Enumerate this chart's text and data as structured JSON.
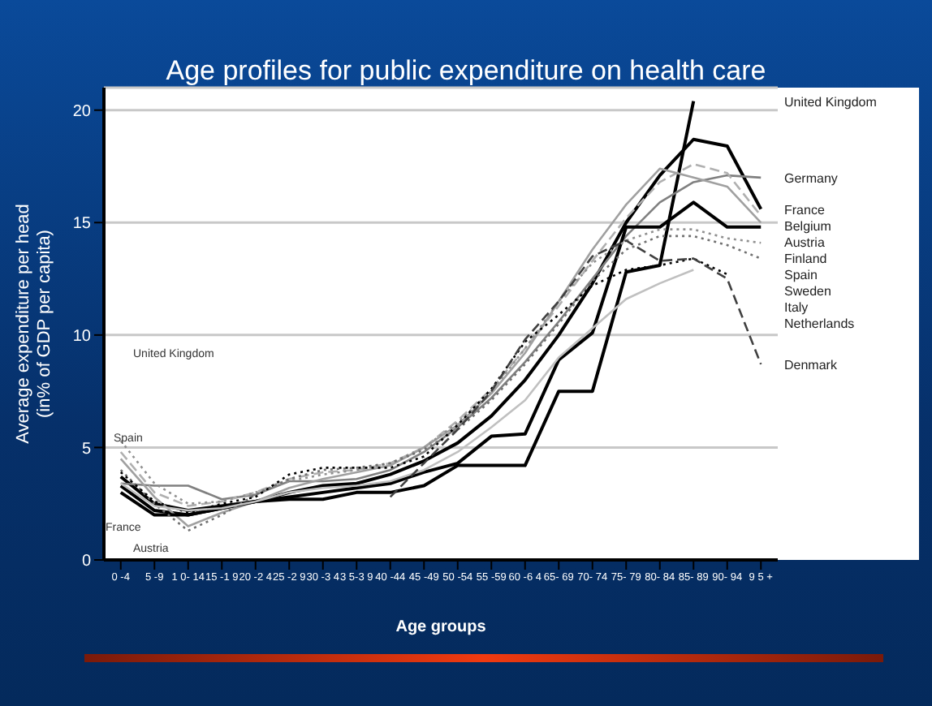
{
  "chart_data": {
    "type": "line",
    "title": "Age profiles for public expenditure on health care",
    "xlabel": "Age groups",
    "ylabel": "Average expenditure per head\n(in% of GDP per capita)",
    "categories": [
      "0 -4",
      "5 -9",
      "1 0- 14",
      "15 -1 9",
      "20 -2 4",
      "25 -2 9",
      "30 -3 4",
      "3 5-3 9",
      "40 -44",
      "45 -49",
      "50 -54",
      "55 -59",
      "60 -6 4",
      "65- 69",
      "70- 74",
      "75- 79",
      "80- 84",
      "85- 89",
      "90- 94",
      "9 5 +"
    ],
    "ylim": [
      0,
      21
    ],
    "yticks": [
      0,
      5,
      10,
      15,
      20
    ],
    "grid": "y",
    "legend": false,
    "series": [
      {
        "name": "United Kingdom",
        "color": "#000000",
        "line_style": "solid",
        "values": [
          3.3,
          2.2,
          2.0,
          2.3,
          2.6,
          2.7,
          2.7,
          3.0,
          3.0,
          3.3,
          4.2,
          4.2,
          4.2,
          7.5,
          7.5,
          12.8,
          13.1,
          20.4,
          null,
          null
        ]
      },
      {
        "name": "France",
        "color": "#000000",
        "line_style": "solid",
        "values": [
          3.7,
          2.5,
          2.2,
          2.4,
          2.6,
          3.0,
          3.3,
          3.4,
          3.8,
          4.4,
          5.2,
          6.4,
          8.0,
          10.0,
          12.3,
          15.0,
          17.1,
          18.7,
          18.4,
          15.6
        ]
      },
      {
        "name": "Germany",
        "color": "#808080",
        "line_style": "solid",
        "values": [
          3.4,
          3.3,
          3.3,
          2.7,
          2.9,
          3.5,
          3.5,
          3.6,
          4.0,
          4.8,
          5.9,
          7.2,
          8.8,
          10.6,
          12.5,
          14.4,
          15.9,
          16.8,
          17.1,
          17.0
        ]
      },
      {
        "name": "Belgium",
        "color": "#b0b0b0",
        "line_style": "dashed",
        "values": [
          4.8,
          3.0,
          2.4,
          2.6,
          3.0,
          3.6,
          3.9,
          4.0,
          4.3,
          5.0,
          6.2,
          7.6,
          9.4,
          11.3,
          13.3,
          15.2,
          16.8,
          17.6,
          17.2,
          15.3
        ]
      },
      {
        "name": "Austria",
        "color": "#a0a0a0",
        "line_style": "solid",
        "values": [
          4.5,
          2.8,
          1.5,
          2.1,
          2.6,
          3.2,
          3.6,
          3.9,
          4.2,
          5.0,
          6.0,
          7.4,
          9.2,
          11.5,
          13.8,
          15.8,
          17.4,
          17.0,
          16.6,
          15.0
        ]
      },
      {
        "name": "Finland",
        "color": "#000000",
        "line_style": "solid",
        "values": [
          3.0,
          2.0,
          2.0,
          2.3,
          2.6,
          2.8,
          3.0,
          3.2,
          3.4,
          3.9,
          4.3,
          5.5,
          5.6,
          8.9,
          10.1,
          14.8,
          14.8,
          15.9,
          14.8,
          14.8
        ]
      },
      {
        "name": "Spain",
        "color": "#909090",
        "line_style": "dotted",
        "values": [
          5.3,
          3.4,
          2.5,
          2.6,
          3.0,
          3.5,
          3.8,
          4.0,
          4.3,
          5.0,
          6.1,
          7.5,
          9.4,
          11.5,
          13.2,
          14.2,
          14.7,
          14.7,
          14.3,
          14.1
        ]
      },
      {
        "name": "Sweden",
        "color": "#707070",
        "line_style": "dotted",
        "values": [
          4.0,
          2.5,
          1.3,
          2.0,
          2.9,
          3.6,
          4.0,
          4.1,
          4.3,
          4.9,
          5.8,
          7.1,
          8.7,
          10.5,
          12.4,
          13.8,
          14.4,
          14.4,
          14.0,
          13.4
        ]
      },
      {
        "name": "Netherlands",
        "color": "#000000",
        "line_style": "dotted",
        "values": [
          3.9,
          2.6,
          2.1,
          2.5,
          2.8,
          3.8,
          4.1,
          4.1,
          4.1,
          4.6,
          6.0,
          7.6,
          9.7,
          10.9,
          12.2,
          12.9,
          13.1,
          13.4,
          12.7,
          null
        ]
      },
      {
        "name": "Italy",
        "color": "#c0c0c0",
        "line_style": "solid",
        "values": [
          3.4,
          2.4,
          2.2,
          2.3,
          2.6,
          3.0,
          3.2,
          3.3,
          3.5,
          4.0,
          4.8,
          5.9,
          7.1,
          9.0,
          10.3,
          11.6,
          12.3,
          12.9,
          null,
          null
        ]
      },
      {
        "name": "Denmark",
        "color": "#404040",
        "line_style": "dashed",
        "values": [
          null,
          null,
          null,
          null,
          null,
          null,
          null,
          null,
          2.8,
          4.3,
          5.8,
          7.5,
          9.8,
          11.5,
          13.5,
          14.2,
          13.3,
          13.4,
          12.5,
          8.7
        ]
      }
    ],
    "annotations": [
      "United Kingdom",
      "Spain",
      "France",
      "Austria"
    ]
  }
}
